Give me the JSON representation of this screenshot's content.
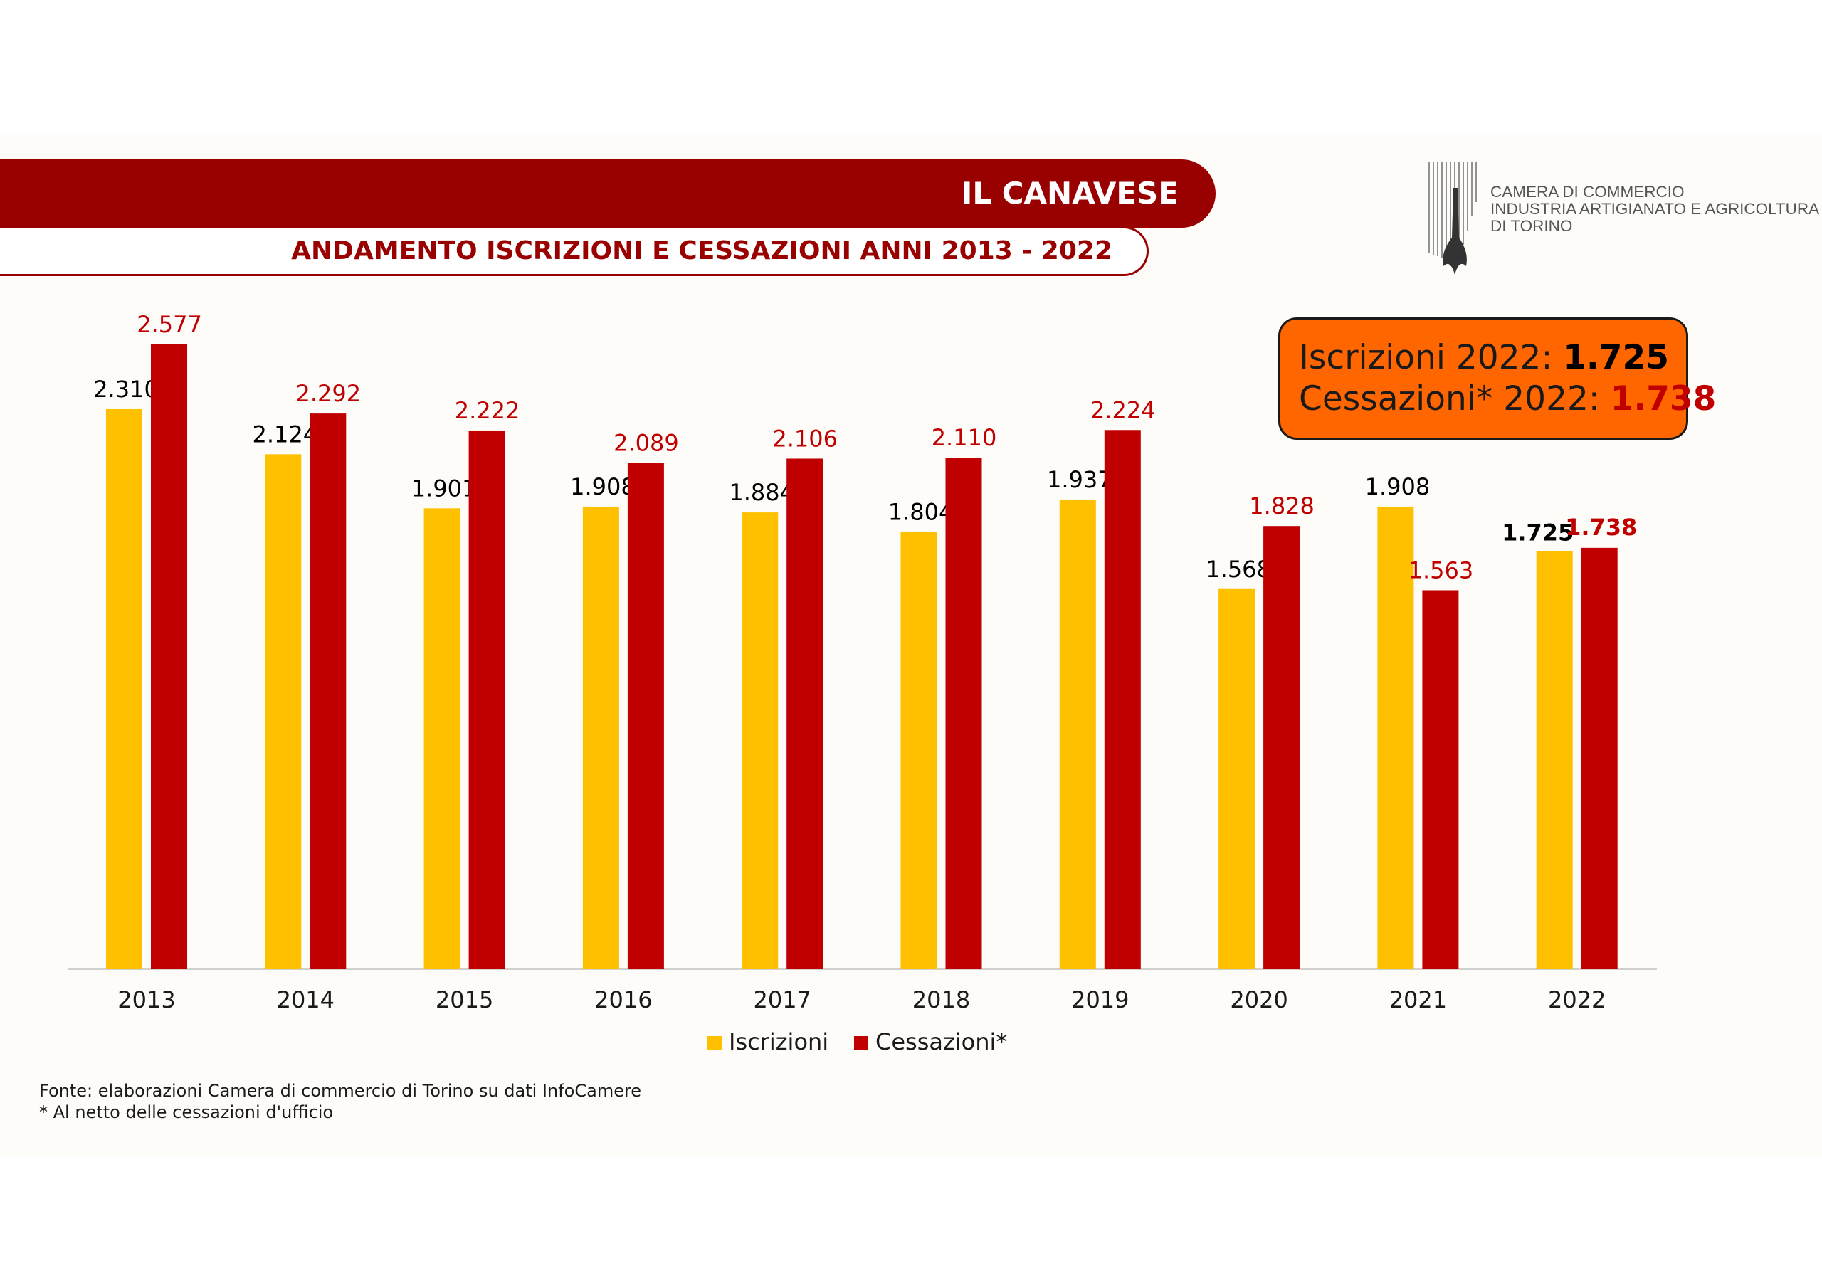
{
  "header": {
    "title": "IL CANAVESE",
    "subtitle": "ANDAMENTO ISCRIZIONI E CESSAZIONI ANNI 2013 - 2022"
  },
  "logo": {
    "line1": "CAMERA DI COMMERCIO",
    "line2": "INDUSTRIA ARTIGIANATO E AGRICOLTURA",
    "line3": "DI TORINO"
  },
  "callout": {
    "line1_label": "Iscrizioni 2022: ",
    "line1_value": "1.725",
    "line2_label": "Cessazioni* 2022: ",
    "line2_value": "1.738"
  },
  "footnotes": {
    "source": "Fonte: elaborazioni Camera di commercio di Torino su dati InfoCamere",
    "note": "* Al netto delle cessazioni d'ufficio"
  },
  "colors": {
    "header_bg": "#990000",
    "iscrizioni": "#ffc000",
    "cessazioni": "#c00000",
    "callout_bg": "#ff6600"
  },
  "chart_data": {
    "type": "bar",
    "categories": [
      "2013",
      "2014",
      "2015",
      "2016",
      "2017",
      "2018",
      "2019",
      "2020",
      "2021",
      "2022"
    ],
    "series": [
      {
        "name": "Iscrizioni",
        "values": [
          2310,
          2124,
          1901,
          1908,
          1884,
          1804,
          1937,
          1568,
          1908,
          1725
        ],
        "labels": [
          "2.310",
          "2.124",
          "1.901",
          "1.908",
          "1.884",
          "1.804",
          "1.937",
          "1.568",
          "1.908",
          "1.725"
        ],
        "color": "#ffc000"
      },
      {
        "name": "Cessazioni*",
        "values": [
          2577,
          2292,
          2222,
          2089,
          2106,
          2110,
          2224,
          1828,
          1563,
          1738
        ],
        "labels": [
          "2.577",
          "2.292",
          "2.222",
          "2.089",
          "2.106",
          "2.110",
          "2.224",
          "1.828",
          "1.563",
          "1.738"
        ],
        "color": "#c00000"
      }
    ],
    "ylim": [
      0,
      2577
    ],
    "legend_position": "bottom",
    "grid": false
  }
}
